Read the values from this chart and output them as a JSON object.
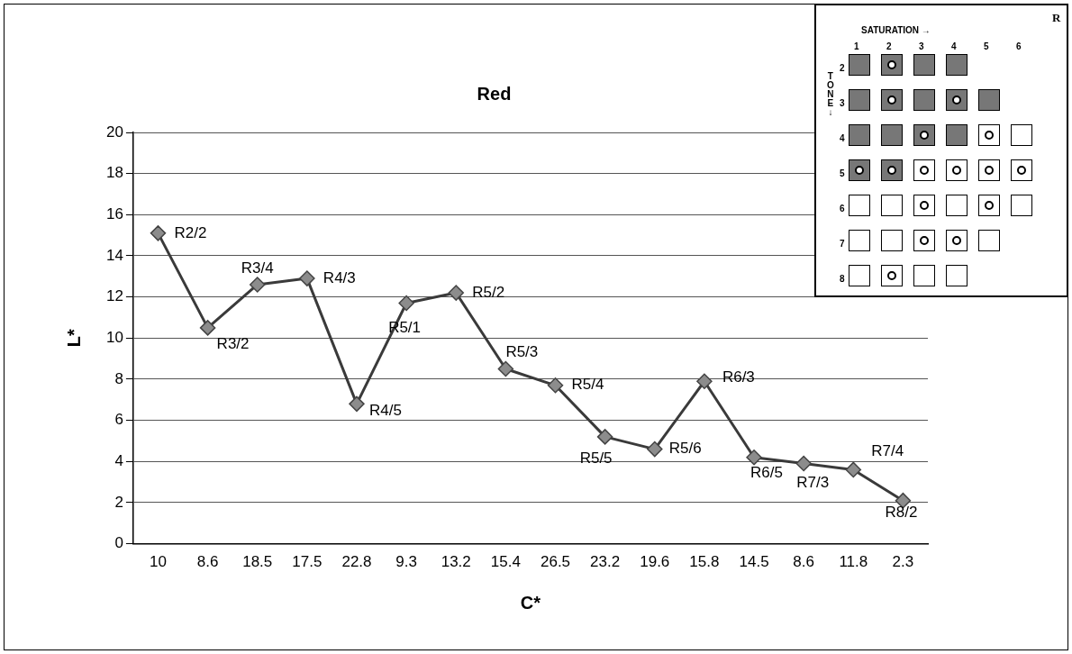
{
  "chart_data": {
    "type": "line",
    "title": "Red",
    "xlabel": "C*",
    "ylabel": "L*",
    "categories": [
      "10",
      "8.6",
      "18.5",
      "17.5",
      "22.8",
      "9.3",
      "13.2",
      "15.4",
      "26.5",
      "23.2",
      "19.6",
      "15.8",
      "14.5",
      "8.6",
      "11.8",
      "2.3"
    ],
    "series": [
      {
        "color": "#8c8c8c",
        "values": [
          15.1,
          10.5,
          12.6,
          12.9,
          6.8,
          11.7,
          12.2,
          8.5,
          7.7,
          5.2,
          4.6,
          7.9,
          4.2,
          3.9,
          3.6,
          2.1
        ],
        "value_labels": [
          "R2/2",
          "R3/2",
          "R3/4",
          "R4/3",
          "R4/5",
          "R5/1",
          "R5/2",
          "R5/3",
          "R5/4",
          "R5/5",
          "R5/6",
          "R6/3",
          "R6/5",
          "R7/3",
          "R7/4",
          "R8/2"
        ]
      }
    ],
    "ylim": [
      0,
      20
    ],
    "yticks": [
      0,
      2,
      4,
      6,
      8,
      10,
      12,
      14,
      16,
      18,
      20
    ],
    "grid": "y",
    "legend": false,
    "marker": "diamond",
    "line_style": "solid",
    "annotations": [
      "R",
      "SATURATION →",
      "TONE↓",
      "1",
      "2",
      "3",
      "4",
      "5",
      "6",
      "2",
      "3",
      "4",
      "5",
      "6",
      "7",
      "8"
    ]
  }
}
